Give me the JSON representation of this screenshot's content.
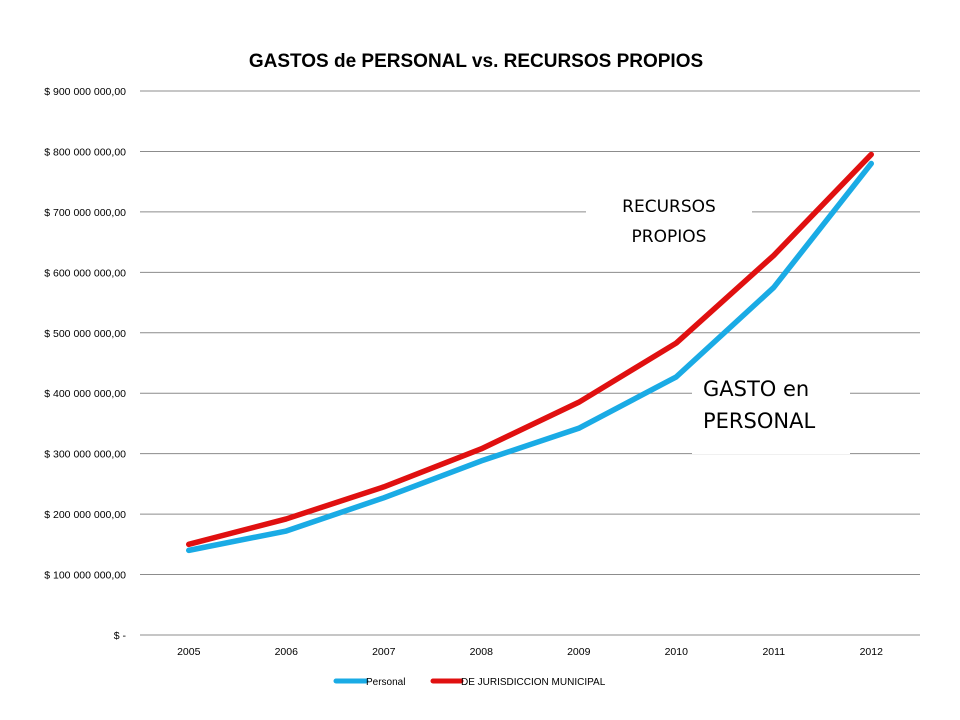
{
  "chart_data": {
    "type": "line",
    "title": "GASTOS de PERSONAL vs. RECURSOS PROPIOS",
    "categories": [
      "2005",
      "2006",
      "2007",
      "2008",
      "2009",
      "2010",
      "2011",
      "2012"
    ],
    "ylim": [
      0,
      900000000
    ],
    "y_ticks": [
      {
        "value": 0,
        "label": "$ -"
      },
      {
        "value": 100000000,
        "label": "$ 100 000 000,00"
      },
      {
        "value": 200000000,
        "label": "$ 200 000 000,00"
      },
      {
        "value": 300000000,
        "label": "$ 300 000 000,00"
      },
      {
        "value": 400000000,
        "label": "$ 400 000 000,00"
      },
      {
        "value": 500000000,
        "label": "$ 500 000 000,00"
      },
      {
        "value": 600000000,
        "label": "$ 600 000 000,00"
      },
      {
        "value": 700000000,
        "label": "$ 700 000 000,00"
      },
      {
        "value": 800000000,
        "label": "$ 800 000 000,00"
      },
      {
        "value": 900000000,
        "label": "$ 900 000 000,00"
      }
    ],
    "grid": true,
    "legend_position": "bottom",
    "series": [
      {
        "name": "Personal",
        "color": "#1aabe5",
        "values": [
          140000000,
          172000000,
          227000000,
          288000000,
          342000000,
          427000000,
          575000000,
          780000000
        ]
      },
      {
        "name": "DE JURISDICCION MUNICIPAL",
        "color": "#e01010",
        "values": [
          150000000,
          192000000,
          245000000,
          308000000,
          385000000,
          483000000,
          628000000,
          795000000
        ]
      }
    ],
    "annotations": [
      {
        "id": "recursos",
        "lines": [
          "RECURSOS",
          "PROPIOS"
        ]
      },
      {
        "id": "gasto",
        "lines": [
          "GASTO en",
          "PERSONAL"
        ]
      }
    ]
  }
}
